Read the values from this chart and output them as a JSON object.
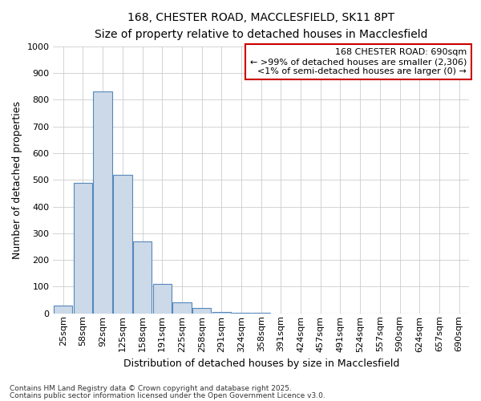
{
  "title_line1": "168, CHESTER ROAD, MACCLESFIELD, SK11 8PT",
  "title_line2": "Size of property relative to detached houses in Macclesfield",
  "xlabel": "Distribution of detached houses by size in Macclesfield",
  "ylabel": "Number of detached properties",
  "bin_labels": [
    "25sqm",
    "58sqm",
    "92sqm",
    "125sqm",
    "158sqm",
    "191sqm",
    "225sqm",
    "258sqm",
    "291sqm",
    "324sqm",
    "358sqm",
    "391sqm",
    "424sqm",
    "457sqm",
    "491sqm",
    "524sqm",
    "557sqm",
    "590sqm",
    "624sqm",
    "657sqm",
    "690sqm"
  ],
  "bin_centers": [
    0,
    1,
    2,
    3,
    4,
    5,
    6,
    7,
    8,
    9,
    10,
    11,
    12,
    13,
    14,
    15,
    16,
    17,
    18,
    19,
    20
  ],
  "bar_heights": [
    30,
    490,
    830,
    520,
    270,
    110,
    40,
    20,
    5,
    2,
    1,
    0,
    0,
    0,
    0,
    0,
    0,
    0,
    0,
    0,
    0
  ],
  "bar_facecolor": "#ccd9e8",
  "bar_edgecolor": "#5588bb",
  "ylim": [
    0,
    1000
  ],
  "yticks": [
    0,
    100,
    200,
    300,
    400,
    500,
    600,
    700,
    800,
    900,
    1000
  ],
  "grid_color": "#cccccc",
  "annotation_title": "168 CHESTER ROAD: 690sqm",
  "annotation_line1": "← >99% of detached houses are smaller (2,306)",
  "annotation_line2": "<1% of semi-detached houses are larger (0) →",
  "annotation_box_facecolor": "#ffffff",
  "annotation_box_edgecolor": "#cc0000",
  "footnote1": "Contains HM Land Registry data © Crown copyright and database right 2025.",
  "footnote2": "Contains public sector information licensed under the Open Government Licence v3.0.",
  "title_fontsize": 10,
  "subtitle_fontsize": 9,
  "ylabel_fontsize": 9,
  "xlabel_fontsize": 9,
  "tick_fontsize": 8,
  "annot_fontsize": 8,
  "footnote_fontsize": 6.5
}
